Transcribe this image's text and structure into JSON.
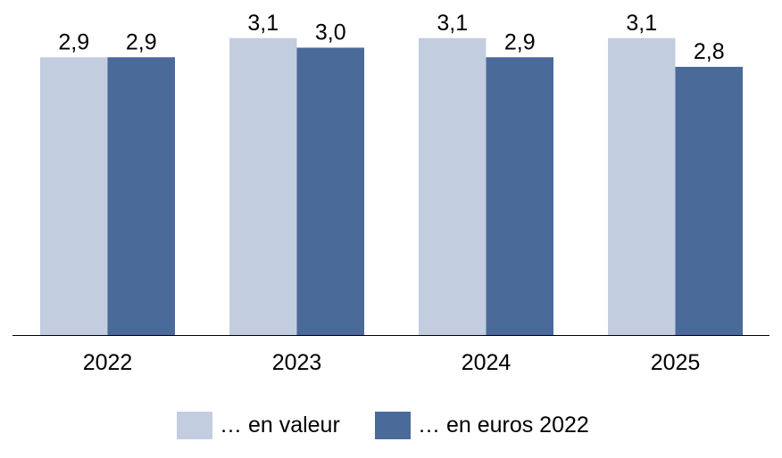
{
  "chart_data": {
    "type": "bar",
    "title": "",
    "xlabel": "",
    "ylabel": "",
    "categories": [
      "2022",
      "2023",
      "2024",
      "2025"
    ],
    "series": [
      {
        "name": "… en valeur",
        "values": [
          2.9,
          3.1,
          3.1,
          3.1
        ],
        "labels": [
          "2,9",
          "3,1",
          "3,1",
          "3,1"
        ],
        "color": "#c3cde0"
      },
      {
        "name": "… en euros 2022",
        "values": [
          2.9,
          3.0,
          2.9,
          2.8
        ],
        "labels": [
          "2,9",
          "3,0",
          "2,9",
          "2,8"
        ],
        "color": "#4a6a9a"
      }
    ],
    "ylim": [
      0,
      3.4
    ],
    "grid": false,
    "legend_position": "bottom"
  }
}
